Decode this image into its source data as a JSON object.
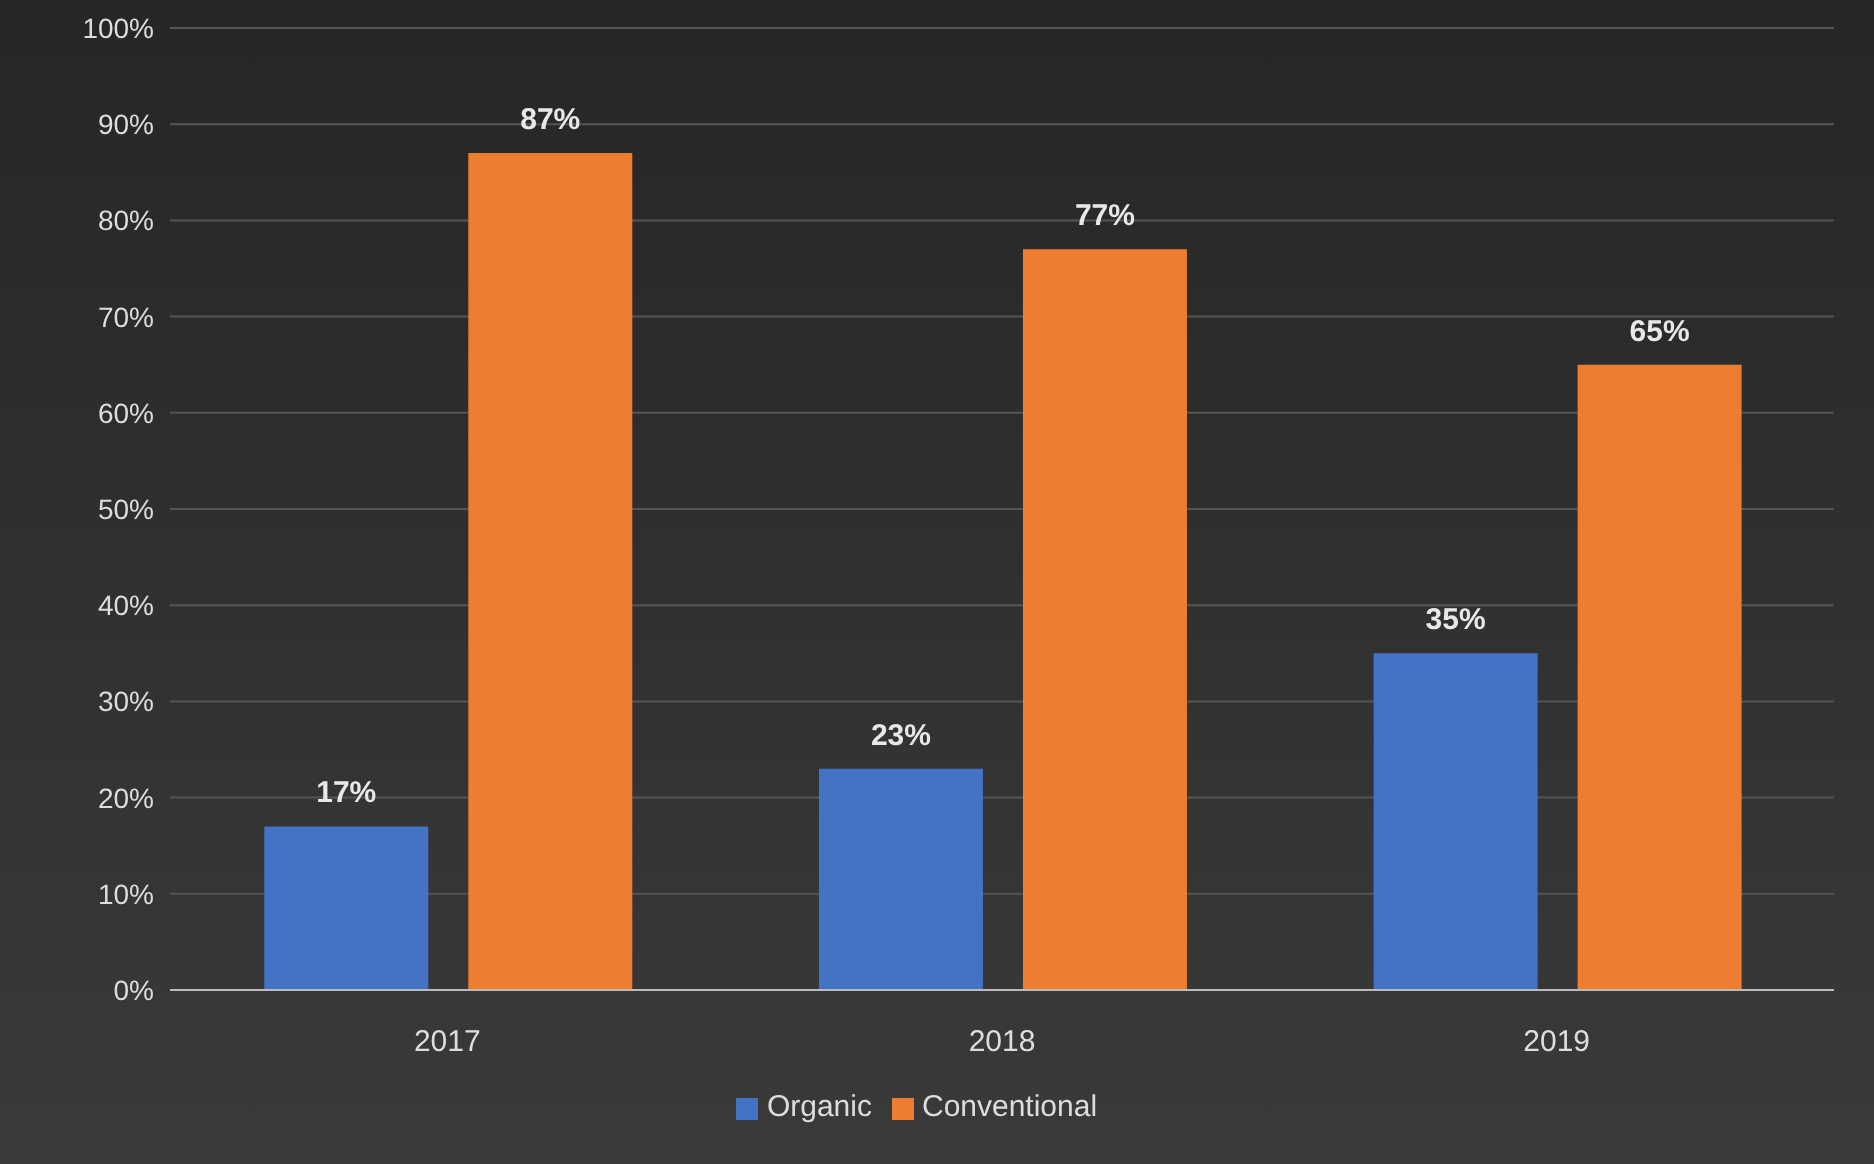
{
  "chart_data": {
    "type": "bar",
    "categories": [
      "2017",
      "2018",
      "2019"
    ],
    "series": [
      {
        "name": "Organic",
        "color": "#4472c4",
        "values": [
          17,
          23,
          35
        ],
        "value_labels": [
          "17%",
          "23%",
          "35%"
        ]
      },
      {
        "name": "Conventional",
        "color": "#ed7d31",
        "values": [
          87,
          77,
          65
        ],
        "value_labels": [
          "87%",
          "77%",
          "65%"
        ]
      }
    ],
    "ylim": [
      0,
      100
    ],
    "yticks": [
      {
        "value": 0,
        "label": "0%"
      },
      {
        "value": 10,
        "label": "10%"
      },
      {
        "value": 20,
        "label": "20%"
      },
      {
        "value": 30,
        "label": "30%"
      },
      {
        "value": 40,
        "label": "40%"
      },
      {
        "value": 50,
        "label": "50%"
      },
      {
        "value": 60,
        "label": "60%"
      },
      {
        "value": 70,
        "label": "70%"
      },
      {
        "value": 80,
        "label": "80%"
      },
      {
        "value": 90,
        "label": "90%"
      },
      {
        "value": 100,
        "label": "100%"
      }
    ],
    "grid": "y",
    "legend": "bottom"
  }
}
